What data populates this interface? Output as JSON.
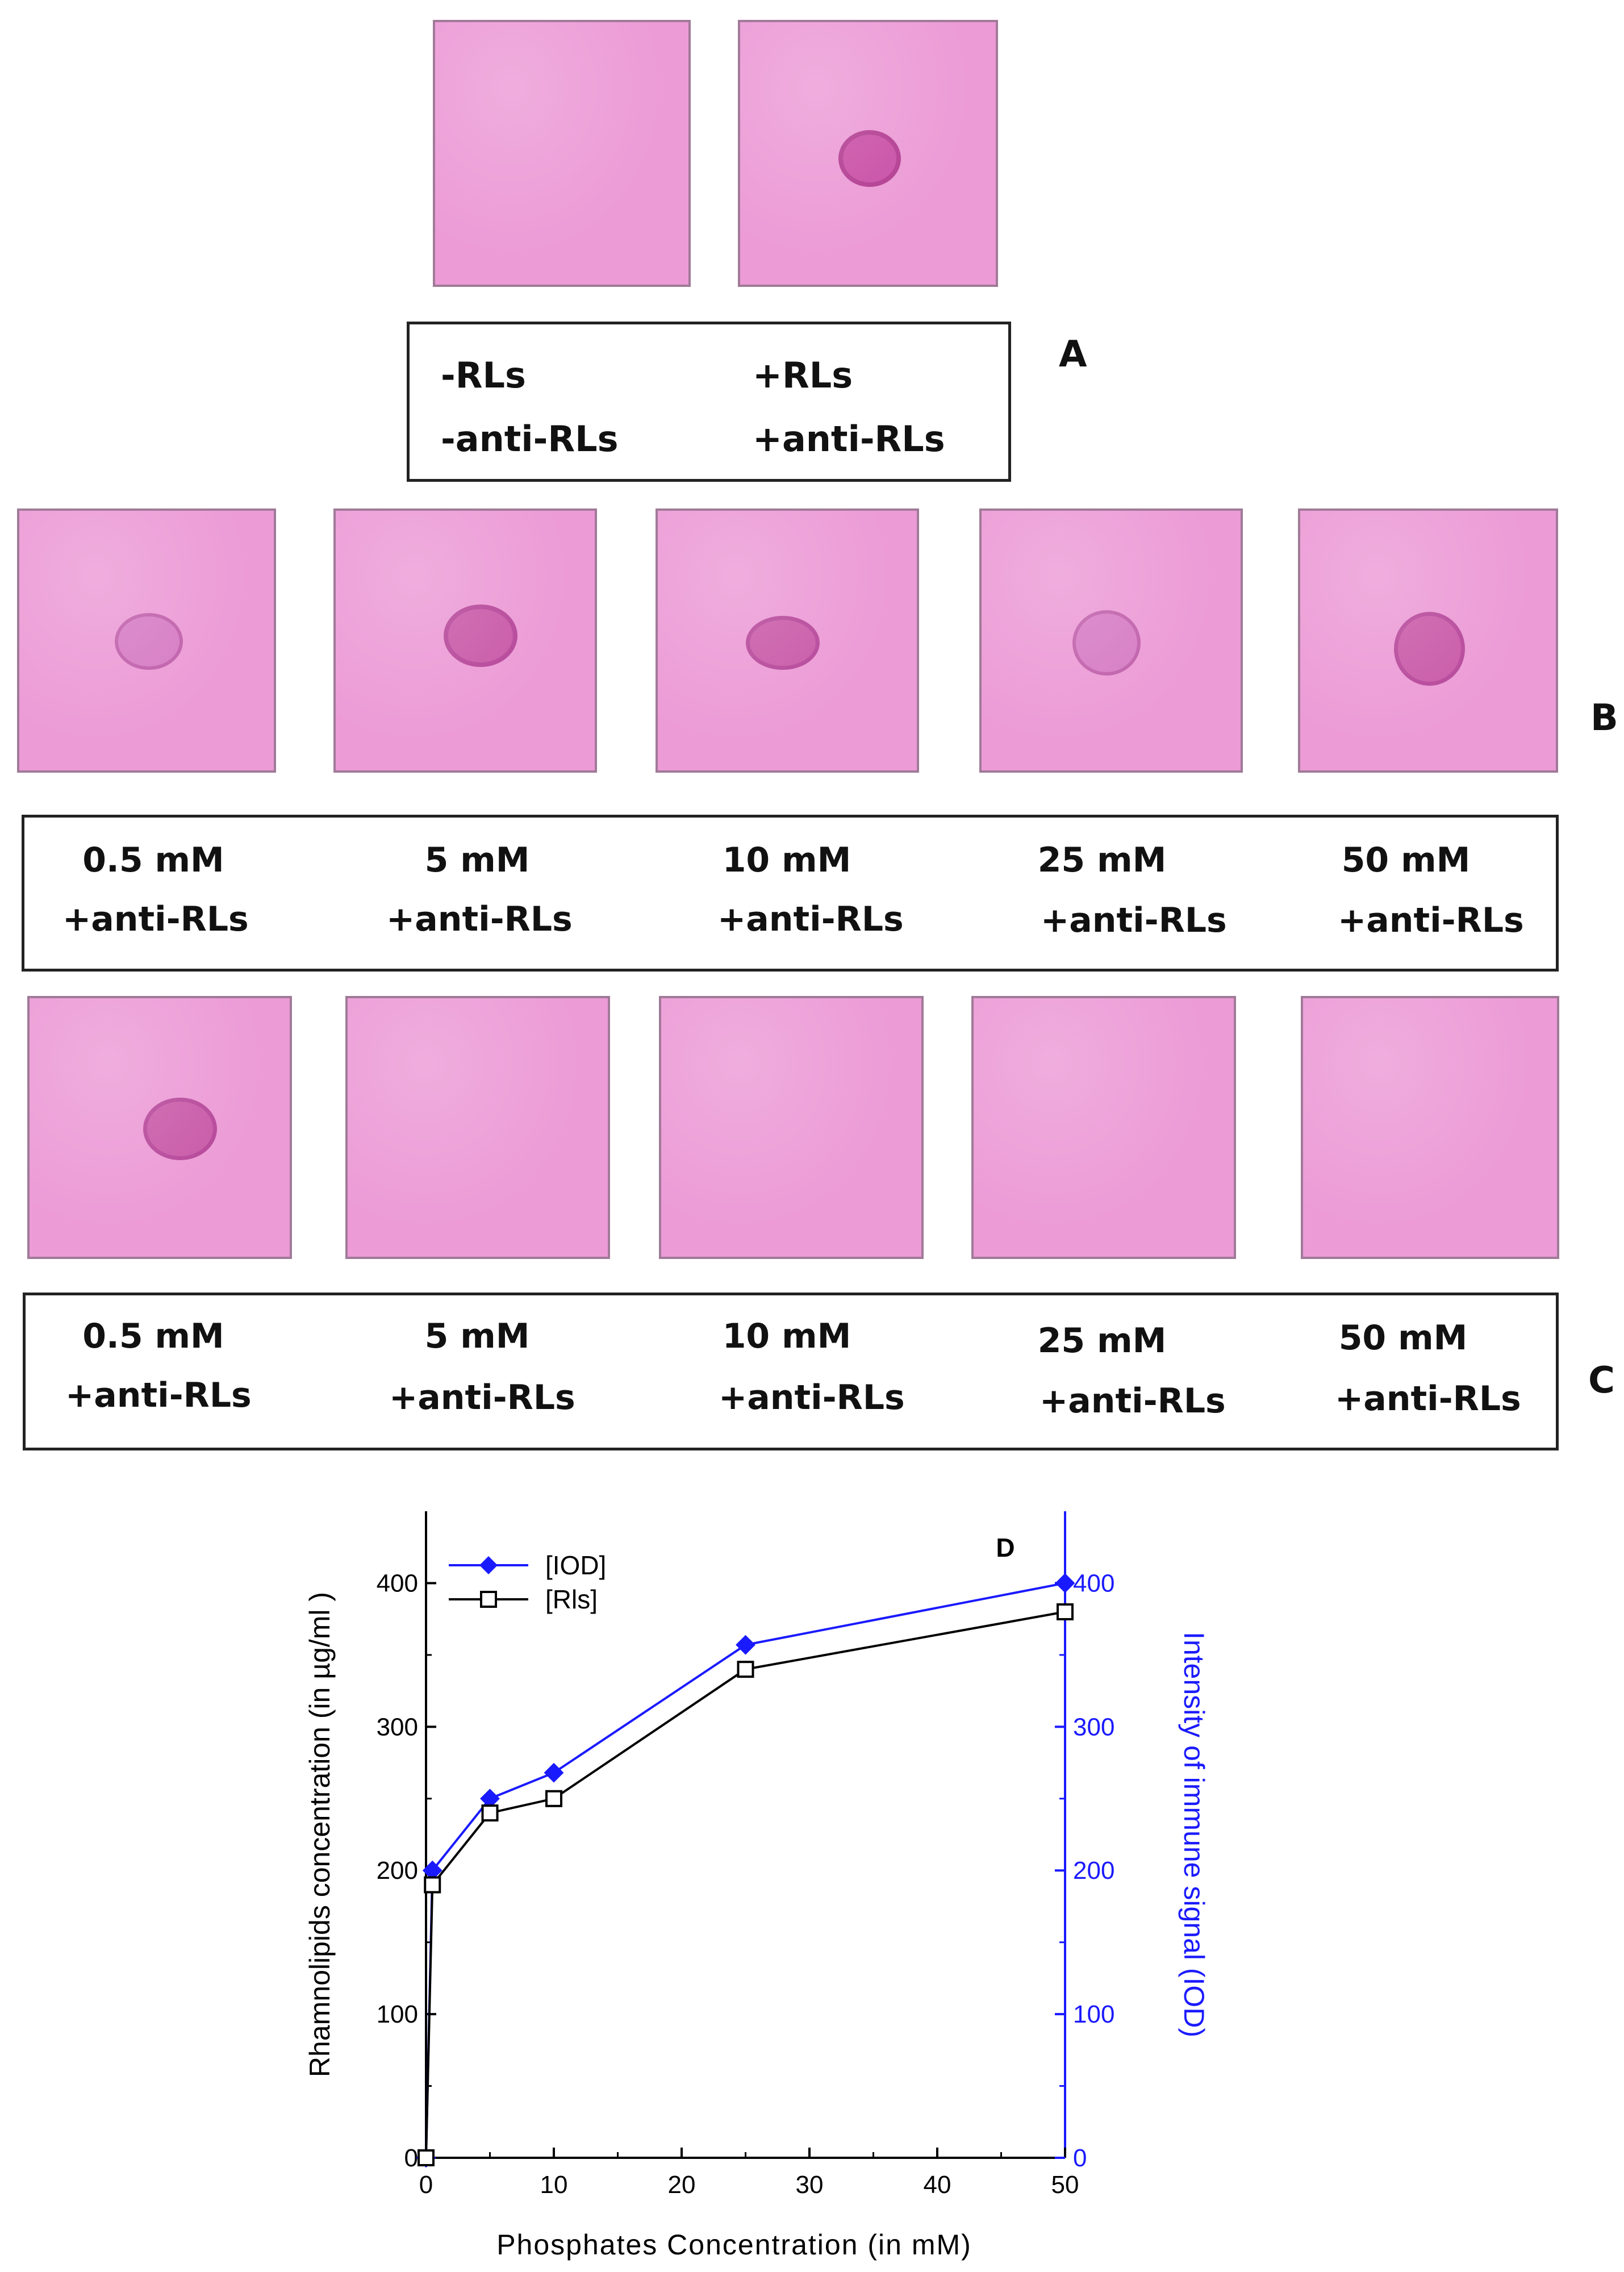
{
  "panel_a": {
    "letter": "A",
    "labels": [
      {
        "line1": "-RLs",
        "line2": "-anti-RLs",
        "spot": false
      },
      {
        "line1": "+RLs",
        "line2": "+anti-RLs",
        "spot": true
      }
    ]
  },
  "panel_b": {
    "letter": "B",
    "labels": [
      {
        "line1": "0.5 mM",
        "line2": "+anti-RLs",
        "spot": true
      },
      {
        "line1": "5 mM",
        "line2": "+anti-RLs",
        "spot": true
      },
      {
        "line1": "10 mM",
        "line2": "+anti-RLs",
        "spot": true
      },
      {
        "line1": "25 mM",
        "line2": "+anti-RLs",
        "spot": true
      },
      {
        "line1": "50 mM",
        "line2": "+anti-RLs",
        "spot": true
      }
    ]
  },
  "panel_c": {
    "letter": "C",
    "labels": [
      {
        "line1": "0.5 mM",
        "line2": "+anti-RLs",
        "spot": true
      },
      {
        "line1": "5 mM",
        "line2": "+anti-RLs",
        "spot": false
      },
      {
        "line1": "10 mM",
        "line2": "+anti-RLs",
        "spot": false
      },
      {
        "line1": "25 mM",
        "line2": "+anti-RLs",
        "spot": false
      },
      {
        "line1": "50 mM",
        "line2": "+anti-RLs",
        "spot": false
      }
    ]
  },
  "colors": {
    "membrane": "#ec9bd6",
    "spot": "#c94fa6",
    "iod_series": "#1a1aff",
    "rls_series": "#000000"
  },
  "chart_data": {
    "type": "line",
    "panel_label": "D",
    "xlabel": "Phosphates Concentration (in mM)",
    "ylabel": "Rhamnolipids concentration (in µg/ml )",
    "y2label": "Intensity of immune signal (IOD)",
    "xlim": [
      0,
      50
    ],
    "ylim": [
      0,
      450
    ],
    "y2lim": [
      0,
      450
    ],
    "xticks": [
      0,
      10,
      20,
      30,
      40,
      50
    ],
    "yticks": [
      0,
      100,
      200,
      300,
      400
    ],
    "y2ticks": [
      0,
      100,
      200,
      300,
      400
    ],
    "legend_position": "top-left",
    "series": [
      {
        "name": "[IOD]",
        "axis": "right",
        "marker": "filled-diamond",
        "x": [
          0,
          0.5,
          5,
          10,
          25,
          50
        ],
        "y": [
          0,
          200,
          250,
          268,
          357,
          400
        ]
      },
      {
        "name": "[Rls]",
        "axis": "left",
        "marker": "open-square",
        "x": [
          0,
          0.5,
          5,
          10,
          25,
          50
        ],
        "y": [
          0,
          190,
          240,
          250,
          340,
          380
        ]
      }
    ]
  }
}
